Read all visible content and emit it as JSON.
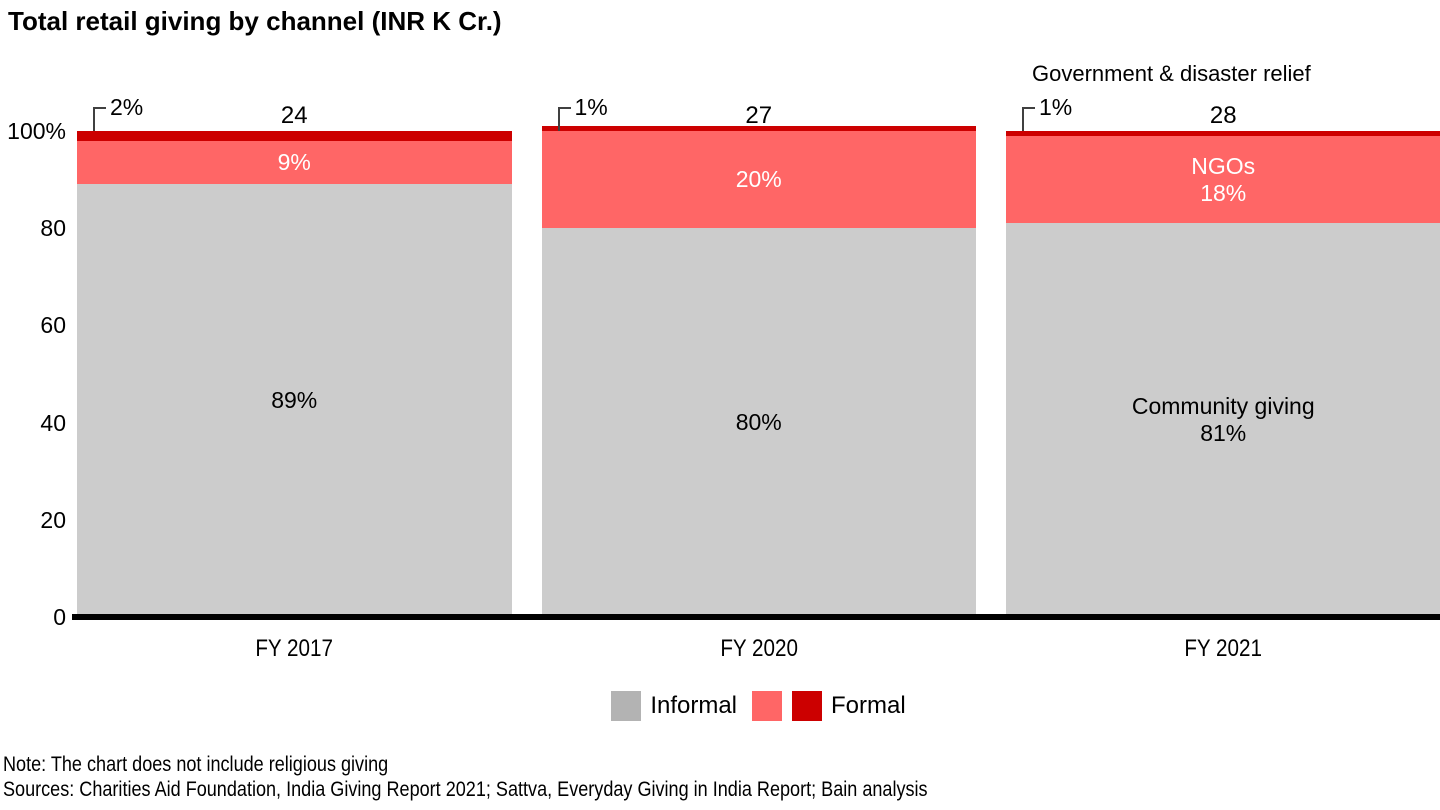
{
  "title": "Total retail giving by channel (INR K Cr.)",
  "chart_data": {
    "type": "bar",
    "stacked": true,
    "percent_stacked": true,
    "title": "Total retail giving by channel (INR K Cr.)",
    "categories": [
      "FY 2017",
      "FY 2020",
      "FY 2021"
    ],
    "totals_inr_k_cr": [
      24,
      27,
      28
    ],
    "series": [
      {
        "name": "Informal (Community giving)",
        "color": "#cccccc",
        "values": [
          89,
          80,
          81
        ]
      },
      {
        "name": "Formal - NGOs",
        "color": "#ff6666",
        "values": [
          9,
          20,
          18
        ]
      },
      {
        "name": "Formal - Government & disaster relief",
        "color": "#cc0000",
        "values": [
          2,
          1,
          1
        ]
      }
    ],
    "ylim": [
      0,
      100
    ],
    "yticks": [
      {
        "label": "100%",
        "value": 100
      },
      {
        "label": "80",
        "value": 80
      },
      {
        "label": "60",
        "value": 60
      },
      {
        "label": "40",
        "value": 40
      },
      {
        "label": "20",
        "value": 20
      },
      {
        "label": "0",
        "value": 0
      }
    ],
    "grid": false,
    "legend_position": "bottom"
  },
  "bar_annotations": [
    {
      "category": "FY 2017",
      "total_label": "24",
      "top_callout": "2%",
      "mid_lines": [
        "9%"
      ],
      "base_lines": [
        "89%"
      ]
    },
    {
      "category": "FY 2020",
      "total_label": "27",
      "top_callout": "1%",
      "mid_lines": [
        "20%"
      ],
      "base_lines": [
        "80%"
      ]
    },
    {
      "category": "FY 2021",
      "total_label": "28",
      "top_callout": "1%",
      "mid_lines": [
        "NGOs",
        "18%"
      ],
      "base_lines": [
        "Community giving",
        "81%"
      ]
    }
  ],
  "annotations": {
    "government_label": "Government & disaster relief"
  },
  "legend": {
    "items": [
      {
        "label": "Informal",
        "swatches": [
          "#b3b3b3"
        ]
      },
      {
        "label": "Formal",
        "swatches": [
          "#ff6666",
          "#cc0000"
        ]
      }
    ]
  },
  "colors": {
    "informal_bar": "#cccccc",
    "ngo_bar": "#ff6666",
    "government_bar": "#cc0000",
    "legend_informal": "#b3b3b3",
    "axis": "#000000",
    "callout_line": "#404040"
  },
  "notes": {
    "note": "Note: The chart does not include religious giving",
    "sources": "Sources: Charities Aid Foundation, India Giving Report 2021; Sattva, Everyday Giving in India Report; Bain analysis"
  }
}
